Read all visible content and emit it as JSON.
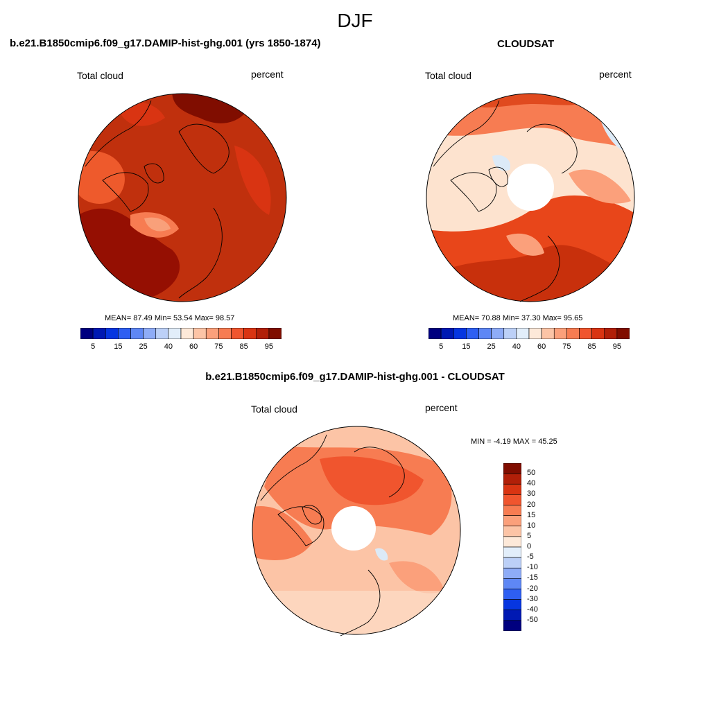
{
  "figure": {
    "title": "DJF"
  },
  "panels": [
    {
      "id": "model",
      "case_title": "b.e21.B1850cmip6.f09_g17.DAMIP-hist-ghg.001 (yrs 1850-1874)",
      "variable": "Total cloud",
      "units": "percent",
      "stats": "MEAN=  87.49  Min=  53.54  Max=  98.57",
      "stats_values": {
        "mean": 87.49,
        "min": 53.54,
        "max": 98.57
      },
      "dominant_color": "#c0300d"
    },
    {
      "id": "obs",
      "case_title": "CLOUDSAT",
      "variable": "Total cloud",
      "units": "percent",
      "stats": "MEAN=  70.88  Min=  37.30  Max=  95.65",
      "stats_values": {
        "mean": 70.88,
        "min": 37.3,
        "max": 95.65
      },
      "dominant_color": "#fcc4a6"
    },
    {
      "id": "diff",
      "case_title": "b.e21.B1850cmip6.f09_g17.DAMIP-hist-ghg.001 - CLOUDSAT",
      "variable": "Total cloud",
      "units": "percent",
      "stats": "MIN =  -4.19 MAX =  45.25",
      "stats_values": {
        "min": -4.19,
        "max": 45.25
      },
      "dominant_color": "#f9855c"
    }
  ],
  "colorbar_main": {
    "labels": [
      "5",
      "15",
      "25",
      "40",
      "60",
      "75",
      "85",
      "95"
    ],
    "colors": [
      "#00007f",
      "#0019b3",
      "#0636e0",
      "#2e5ff2",
      "#5e87f5",
      "#8eacf7",
      "#bcd0f7",
      "#e2eefa",
      "#fde9d9",
      "#fcc4a6",
      "#fba07b",
      "#f77c52",
      "#f0552e",
      "#d93412",
      "#b11f08",
      "#800d00"
    ]
  },
  "colorbar_diff": {
    "labels": [
      "50",
      "40",
      "30",
      "20",
      "15",
      "10",
      "5",
      "0",
      "-5",
      "-10",
      "-15",
      "-20",
      "-30",
      "-40",
      "-50"
    ],
    "colors": [
      "#800d00",
      "#b11f08",
      "#d93412",
      "#f0552e",
      "#f77c52",
      "#fba07b",
      "#fcc4a6",
      "#fde9d9",
      "#e2eefa",
      "#bcd0f7",
      "#8eacf7",
      "#5e87f5",
      "#2e5ff2",
      "#0636e0",
      "#0019b3",
      "#00007f"
    ]
  }
}
